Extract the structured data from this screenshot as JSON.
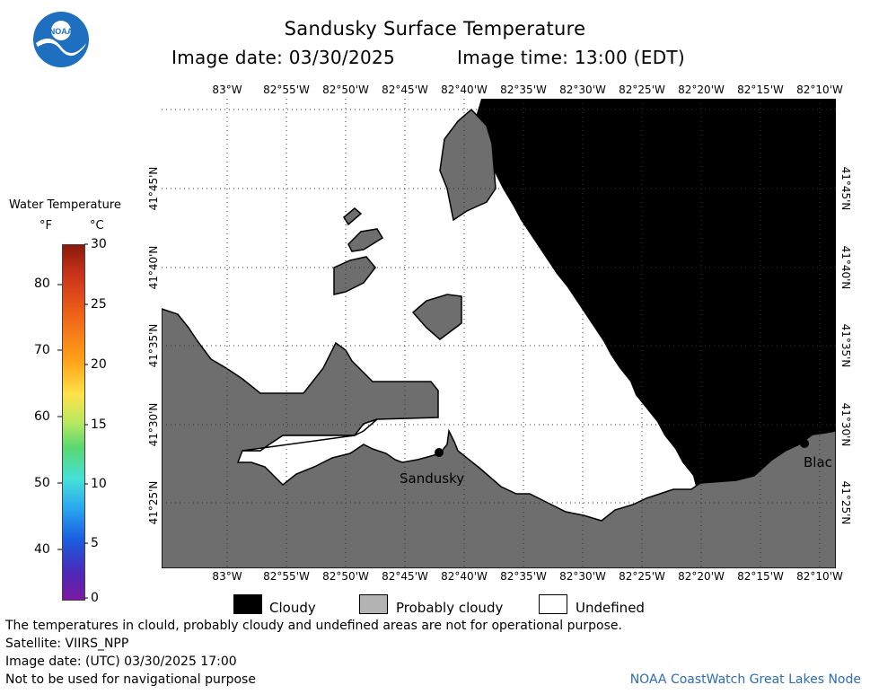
{
  "header": {
    "title": "Sandusky Surface Temperature",
    "image_date": "Image date: 03/30/2025",
    "image_time": "Image time: 13:00 (EDT)"
  },
  "colorbar": {
    "title": "Water Temperature",
    "unit_f": "°F",
    "unit_c": "°C",
    "f_ticks": [
      "80",
      "70",
      "60",
      "50",
      "40"
    ],
    "c_ticks": [
      "30",
      "25",
      "20",
      "15",
      "10",
      "5",
      "0"
    ]
  },
  "map": {
    "lon_labels": [
      "83°W",
      "82°55'W",
      "82°50'W",
      "82°45'W",
      "82°40'W",
      "82°35'W",
      "82°30'W",
      "82°25'W",
      "82°20'W",
      "82°15'W",
      "82°10'W"
    ],
    "lat_labels": [
      "41°45'N",
      "41°40'N",
      "41°35'N",
      "41°30'N",
      "41°25'N"
    ],
    "cities": [
      "Sandusky",
      "Blac"
    ],
    "colors": {
      "land": "#6e6e6e",
      "cloud": "#000000",
      "undefined": "#ffffff",
      "probably_cloudy": "#b3b3b3"
    }
  },
  "legend": {
    "cloudy": "Cloudy",
    "probably_cloudy": "Probably cloudy",
    "undefined": "Undefined"
  },
  "footer": {
    "disclaimer": "The temperatures in clould, probably cloudy and undefined areas are not for operational purpose.",
    "satellite": "Satellite: VIIRS_NPP",
    "utc_date": "Image date: (UTC) 03/30/2025  17:00",
    "nav_warning": "Not to be used for navigational purpose",
    "node": "NOAA CoastWatch Great Lakes Node"
  }
}
